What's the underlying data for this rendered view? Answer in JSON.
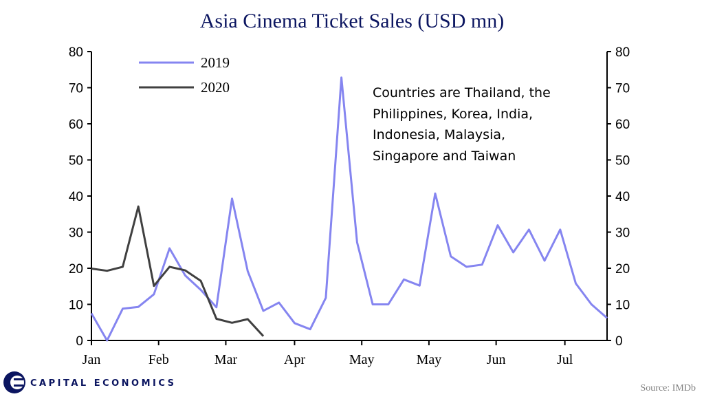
{
  "colors": {
    "s2019": "#8585f0",
    "s2020": "#404040",
    "title": "#0b1560",
    "brand": "#0b1560"
  },
  "brand": {
    "name": "CAPITAL ECONOMICS",
    "icon": "capital-economics-logo-icon"
  },
  "source": "Source: IMDb",
  "chart_data": {
    "type": "line",
    "title": "Asia Cinema Ticket Sales (USD mn)",
    "ylim": [
      0,
      80
    ],
    "yticks": [
      0,
      10,
      20,
      30,
      40,
      50,
      60,
      70,
      80
    ],
    "xlim": [
      0,
      33
    ],
    "x_ticks": [
      {
        "label": "Jan",
        "x": 0
      },
      {
        "label": "Feb",
        "x": 4.3
      },
      {
        "label": "Mar",
        "x": 8.6
      },
      {
        "label": "Apr",
        "x": 13
      },
      {
        "label": "May",
        "x": 17.3
      },
      {
        "label": "May",
        "x": 21.6
      },
      {
        "label": "Jun",
        "x": 25.9
      },
      {
        "label": "Jul",
        "x": 30.3
      }
    ],
    "series": [
      {
        "name": "2019",
        "x": [
          0,
          1,
          2,
          3,
          4,
          5,
          6,
          7,
          8,
          9,
          10,
          11,
          12,
          13,
          14,
          15,
          16,
          17,
          18,
          19,
          20,
          21,
          22,
          23,
          24,
          25,
          26,
          27,
          28,
          29,
          30,
          31,
          32,
          33
        ],
        "values": [
          7.5,
          0,
          8.8,
          9.3,
          12.8,
          25.5,
          18,
          14,
          9.2,
          39.3,
          19.2,
          8.2,
          10.5,
          4.8,
          3.1,
          11.8,
          72.8,
          27.2,
          10,
          10,
          16.9,
          15.2,
          40.7,
          23.3,
          20.4,
          21,
          31.9,
          24.4,
          30.7,
          22.1,
          30.7,
          15.8,
          10,
          6.2
        ]
      },
      {
        "name": "2020",
        "x": [
          0,
          1,
          2,
          3,
          4,
          5,
          6,
          7,
          8,
          9,
          10,
          11
        ],
        "values": [
          19.9,
          19.3,
          20.4,
          37.1,
          15.1,
          20.4,
          19.4,
          16.5,
          6,
          4.9,
          5.9,
          1.2
        ]
      }
    ],
    "annotation": [
      "Countries  are Thailand,  the",
      "Philippines,   Korea, India,",
      "Indonesia,  Malaysia,",
      "Singapore and Taiwan"
    ]
  }
}
